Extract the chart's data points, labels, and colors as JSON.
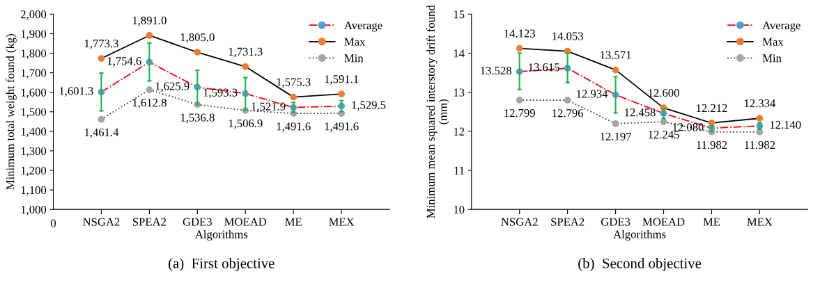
{
  "chart_data": [
    {
      "type": "line",
      "title": "(a)  First objective",
      "xlabel": "Algorithms",
      "ylabel": "Minimum total weight found (kg)",
      "annotations": [
        "0"
      ],
      "categories": [
        "NSGA2",
        "SPEA2",
        "GDE3",
        "MOEAD",
        "ME",
        "MEX"
      ],
      "series": [
        {
          "name": "Average",
          "color": "#ff0000",
          "colors": [
            "#5b9bd5",
            "#5b9bd5",
            "#5b9bd5",
            "#5b9bd5",
            "#5b9bd5",
            "#5b9bd5"
          ],
          "line_style": "dashdot",
          "values": [
            1601.3,
            1754.6,
            1625.9,
            1593.3,
            1521.9,
            1529.5
          ],
          "value_labels": [
            "1,601.3",
            "1,754.6",
            "1,625.9",
            "1,593.3",
            "1,521.9",
            "1,529.5"
          ],
          "errors": [
            [
              1505,
              1698
            ],
            [
              1658,
              1852
            ],
            [
              1537,
              1713
            ],
            [
              1510,
              1675
            ],
            [
              1497,
              1548
            ],
            [
              1500,
              1557
            ]
          ]
        },
        {
          "name": "Max",
          "color": "#000000",
          "colors": [
            "#ed7d31",
            "#ed7d31",
            "#ed7d31",
            "#ed7d31",
            "#ed7d31",
            "#ed7d31"
          ],
          "line_style": "solid",
          "values": [
            1773.3,
            1891.0,
            1805.0,
            1731.3,
            1575.3,
            1591.1
          ],
          "value_labels": [
            "1,773.3",
            "1,891.0",
            "1,805.0",
            "1,731.3",
            "1,575.3",
            "1,591.1"
          ]
        },
        {
          "name": "Min",
          "color": "#404040",
          "colors": [
            "#a5a5a5",
            "#a5a5a5",
            "#a5a5a5",
            "#a5a5a5",
            "#a5a5a5",
            "#a5a5a5"
          ],
          "line_style": "dotted",
          "values": [
            1461.4,
            1612.8,
            1536.8,
            1506.9,
            1491.6,
            1491.6
          ],
          "value_labels": [
            "1,461.4",
            "1,612.8",
            "1,536.8",
            "1,506.9",
            "1,491.6",
            "1,491.6"
          ]
        }
      ],
      "ylim": [
        1000,
        2000
      ],
      "yticks": [
        {
          "value": 1000,
          "label": "1,000"
        },
        {
          "value": 1100,
          "label": "1,100"
        },
        {
          "value": 1200,
          "label": "1,200"
        },
        {
          "value": 1300,
          "label": "1,300"
        },
        {
          "value": 1400,
          "label": "1,400"
        },
        {
          "value": 1500,
          "label": "1,500"
        },
        {
          "value": 1600,
          "label": "1,600"
        },
        {
          "value": 1700,
          "label": "1,700"
        },
        {
          "value": 1800,
          "label": "1,800"
        },
        {
          "value": 1900,
          "label": "1,900"
        },
        {
          "value": 2000,
          "label": "2,000"
        }
      ],
      "legend": "top right",
      "marker": "circle",
      "grid": false
    },
    {
      "type": "line",
      "title": "(b)  Second objective",
      "xlabel": "Algorithms",
      "ylabel": "Minimum mean squared interstory drift found (mm)",
      "categories": [
        "NSGA2",
        "SPEA2",
        "GDE3",
        "MOEAD",
        "ME",
        "MEX"
      ],
      "series": [
        {
          "name": "Average",
          "color": "#ff0000",
          "colors": [
            "#5b9bd5",
            "#5b9bd5",
            "#5b9bd5",
            "#5b9bd5",
            "#5b9bd5",
            "#5b9bd5"
          ],
          "line_style": "dashdot",
          "values": [
            13.528,
            13.615,
            12.934,
            12.458,
            12.08,
            12.14
          ],
          "value_labels": [
            "13.528",
            "13.615",
            "12.934",
            "12.458",
            "12.080",
            "12.140"
          ],
          "errors": [
            [
              13.07,
              14.0
            ],
            [
              13.25,
              14.0
            ],
            [
              12.47,
              13.4
            ],
            [
              12.33,
              12.58
            ],
            [
              12.0,
              12.15
            ],
            [
              12.05,
              12.22
            ]
          ]
        },
        {
          "name": "Max",
          "color": "#000000",
          "colors": [
            "#ed7d31",
            "#ed7d31",
            "#ed7d31",
            "#ed7d31",
            "#ed7d31",
            "#ed7d31"
          ],
          "line_style": "solid",
          "values": [
            14.123,
            14.053,
            13.571,
            12.6,
            12.212,
            12.334
          ],
          "value_labels": [
            "14.123",
            "14.053",
            "13.571",
            "12.600",
            "12.212",
            "12.334"
          ]
        },
        {
          "name": "Min",
          "color": "#404040",
          "colors": [
            "#a5a5a5",
            "#a5a5a5",
            "#a5a5a5",
            "#a5a5a5",
            "#a5a5a5",
            "#a5a5a5"
          ],
          "line_style": "dotted",
          "values": [
            12.799,
            12.796,
            12.197,
            12.245,
            11.982,
            11.982
          ],
          "value_labels": [
            "12.799",
            "12.796",
            "12.197",
            "12.245",
            "11.982",
            "11.982"
          ]
        }
      ],
      "ylim": [
        10,
        15
      ],
      "yticks": [
        10,
        11,
        12,
        13,
        14,
        15
      ],
      "legend": "top right",
      "marker": "circle",
      "grid": false
    }
  ]
}
